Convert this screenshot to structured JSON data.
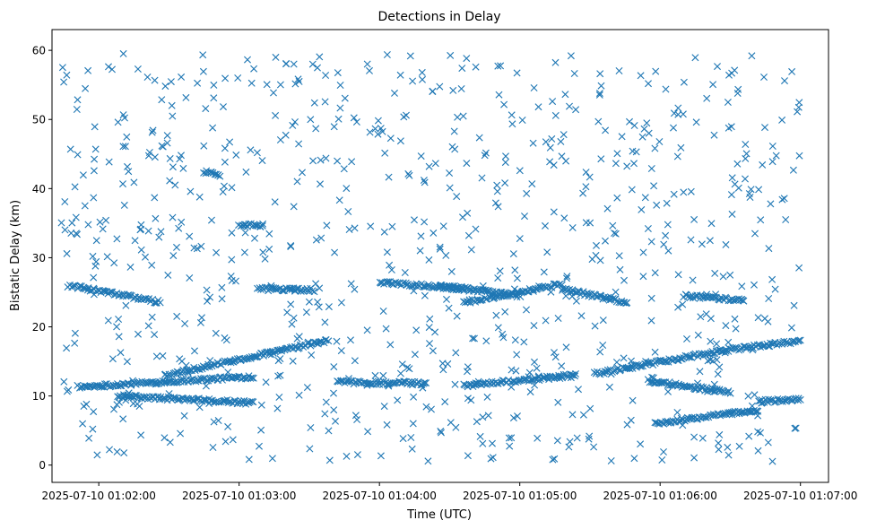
{
  "chart_data": {
    "type": "scatter",
    "title": "Detections in Delay",
    "xlabel": "Time (UTC)",
    "ylabel": "Bistatic Delay (km)",
    "x_ticks": [
      "2025-07-10 01:02:00",
      "2025-07-10 01:03:00",
      "2025-07-10 01:04:00",
      "2025-07-10 01:05:00",
      "2025-07-10 01:06:00",
      "2025-07-10 01:07:00"
    ],
    "x_tick_seconds": [
      120,
      180,
      240,
      300,
      360,
      420
    ],
    "y_ticks": [
      0,
      10,
      20,
      30,
      40,
      50,
      60
    ],
    "xlim_seconds": [
      100,
      432
    ],
    "ylim": [
      -2.5,
      63
    ],
    "marker": "x",
    "color": "#1f77b4",
    "grid": false,
    "tracks": [
      {
        "x": [
          107,
          146
        ],
        "y": [
          26.0,
          23.6
        ]
      },
      {
        "x": [
          111,
          186
        ],
        "y": [
          11.3,
          12.8
        ]
      },
      {
        "x": [
          148,
          218
        ],
        "y": [
          13.0,
          18.0
        ]
      },
      {
        "x": [
          128,
          186
        ],
        "y": [
          10.0,
          9.0
        ]
      },
      {
        "x": [
          222,
          260
        ],
        "y": [
          12.0,
          11.8
        ]
      },
      {
        "x": [
          240,
          276
        ],
        "y": [
          26.5,
          25.5
        ]
      },
      {
        "x": [
          276,
          318
        ],
        "y": [
          23.5,
          26.2
        ]
      },
      {
        "x": [
          318,
          346
        ],
        "y": [
          25.5,
          23.5
        ]
      },
      {
        "x": [
          276,
          324
        ],
        "y": [
          11.5,
          13.0
        ]
      },
      {
        "x": [
          332,
          386
        ],
        "y": [
          13.2,
          16.5
        ]
      },
      {
        "x": [
          386,
          420
        ],
        "y": [
          16.5,
          18.0
        ]
      },
      {
        "x": [
          355,
          390
        ],
        "y": [
          12.2,
          10.5
        ]
      },
      {
        "x": [
          358,
          402
        ],
        "y": [
          6.0,
          8.0
        ]
      },
      {
        "x": [
          402,
          420
        ],
        "y": [
          9.2,
          9.5
        ]
      },
      {
        "x": [
          370,
          396
        ],
        "y": [
          24.5,
          23.8
        ]
      },
      {
        "x": [
          165,
          172
        ],
        "y": [
          42.5,
          42.0
        ]
      },
      {
        "x": [
          180,
          190
        ],
        "y": [
          34.8,
          34.6
        ]
      },
      {
        "x": [
          188,
          212
        ],
        "y": [
          25.5,
          25.3
        ]
      },
      {
        "x": [
          265,
          300
        ],
        "y": [
          26.0,
          24.5
        ]
      }
    ],
    "noise": {
      "seed": 12345,
      "count": 820,
      "x_range": [
        104,
        420
      ],
      "y_range": [
        0.5,
        60
      ]
    }
  }
}
